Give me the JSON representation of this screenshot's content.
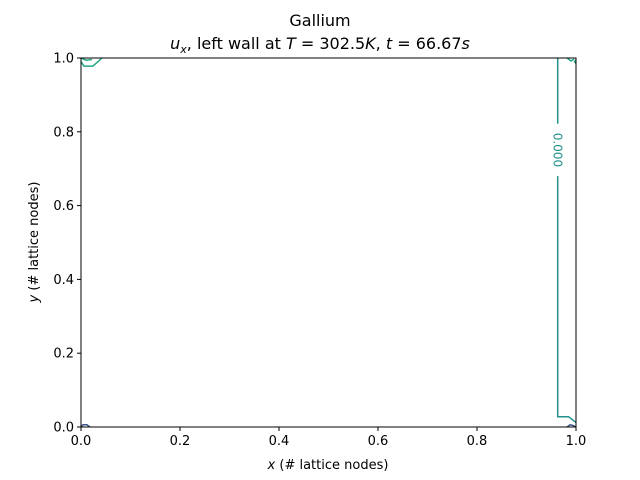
{
  "chart_data": {
    "type": "contour",
    "title": "Gallium",
    "subtitle": {
      "var": "u",
      "sub": "x",
      "middle": ", left wall at ",
      "T_sym": "T",
      "T_eq": " = 302.5",
      "T_unit": "K",
      "sep": ", ",
      "t_sym": "t",
      "t_eq": " = 66.67",
      "t_unit": "s"
    },
    "xlabel": {
      "var": "x",
      "rest": " (# lattice nodes)"
    },
    "ylabel": {
      "var": "y",
      "rest": " (# lattice nodes)"
    },
    "xlim": [
      0.0,
      1.0
    ],
    "ylim": [
      0.0,
      1.0
    ],
    "xticks": [
      0.0,
      0.2,
      0.4,
      0.6,
      0.8,
      1.0
    ],
    "yticks": [
      0.0,
      0.2,
      0.4,
      0.6,
      0.8,
      1.0
    ],
    "xtick_labels": [
      "0.0",
      "0.2",
      "0.4",
      "0.6",
      "0.8",
      "1.0"
    ],
    "ytick_labels": [
      "0.0",
      "0.2",
      "0.4",
      "0.6",
      "0.8",
      "1.0"
    ],
    "contour_level_label": "0.000",
    "contours": [
      {
        "level": "zero",
        "color": "#21918c",
        "points": [
          [
            0.963,
            1.0
          ],
          [
            0.963,
            0.822
          ]
        ]
      },
      {
        "level": "zero",
        "color": "#21918c",
        "points": [
          [
            0.963,
            0.68
          ],
          [
            0.963,
            0.028
          ],
          [
            0.985,
            0.028
          ],
          [
            1.0,
            0.012
          ]
        ]
      },
      {
        "level": "positive",
        "color": "#22a884",
        "points": [
          [
            0.0,
            0.99
          ],
          [
            0.006,
            0.978
          ],
          [
            0.024,
            0.978
          ],
          [
            0.036,
            0.992
          ],
          [
            0.042,
            1.0
          ]
        ]
      },
      {
        "level": "positive",
        "color": "#22a884",
        "points": [
          [
            0.982,
            1.0
          ],
          [
            0.99,
            0.992
          ],
          [
            0.996,
            0.997
          ]
        ]
      },
      {
        "level": "positive",
        "color": "#22a884",
        "points": [
          [
            1.0,
            0.985
          ],
          [
            0.997,
            0.99
          ],
          [
            1.0,
            0.995
          ]
        ]
      },
      {
        "level": "positive",
        "color": "#22a884",
        "points": [
          [
            0.0,
            1.0
          ],
          [
            0.01,
            0.994
          ],
          [
            0.022,
            0.996
          ]
        ]
      },
      {
        "level": "negative",
        "color": "#3b528b",
        "points": [
          [
            0.0,
            0.0
          ],
          [
            0.004,
            0.006
          ],
          [
            0.012,
            0.006
          ],
          [
            0.018,
            0.0
          ]
        ]
      },
      {
        "level": "negative",
        "color": "#3b528b",
        "points": [
          [
            0.982,
            0.0
          ],
          [
            0.988,
            0.006
          ],
          [
            0.994,
            0.004
          ],
          [
            1.0,
            0.0
          ]
        ]
      }
    ],
    "grid": false
  }
}
